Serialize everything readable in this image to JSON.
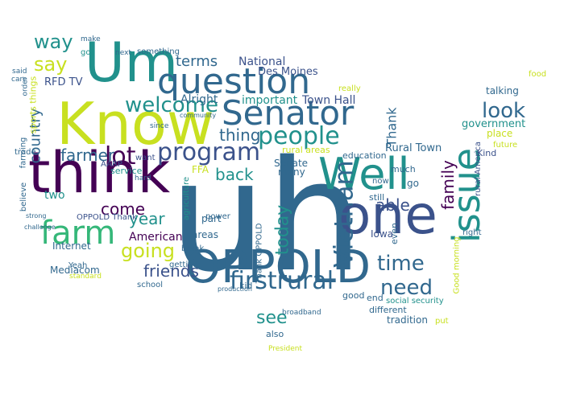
{
  "palette": {
    "dark_purple": "#440154",
    "indigo": "#3b528b",
    "blue": "#31688e",
    "teal": "#21918c",
    "green": "#35b779",
    "lime": "#addc30",
    "yellow": "#c8e020"
  },
  "words": [
    {
      "text": "uh",
      "color": "#31688e"
    },
    {
      "text": "Know",
      "color": "#c8e020"
    },
    {
      "text": "Um",
      "color": "#21918c"
    },
    {
      "text": "think",
      "color": "#440154"
    },
    {
      "text": "Well",
      "color": "#21918c"
    },
    {
      "text": "one",
      "color": "#3b528b"
    },
    {
      "text": "OPPOLD",
      "color": "#31688e"
    },
    {
      "text": "question",
      "color": "#31688e"
    },
    {
      "text": "Senator",
      "color": "#31688e"
    },
    {
      "text": "farm",
      "color": "#35b779"
    },
    {
      "text": "issue",
      "color": "#21918c"
    },
    {
      "text": "people",
      "color": "#21918c"
    },
    {
      "text": "program",
      "color": "#3b528b"
    },
    {
      "text": "firstrural",
      "color": "#31688e"
    },
    {
      "text": "Vietnam",
      "color": "#31688e"
    },
    {
      "text": "welcome",
      "color": "#21918c"
    },
    {
      "text": "going",
      "color": "#c8e020"
    },
    {
      "text": "look",
      "color": "#31688e"
    },
    {
      "text": "time",
      "color": "#31688e"
    },
    {
      "text": "need",
      "color": "#31688e"
    },
    {
      "text": "way",
      "color": "#21918c"
    },
    {
      "text": "say",
      "color": "#c8e020"
    },
    {
      "text": "farmer",
      "color": "#31688e"
    },
    {
      "text": "lot",
      "color": "#440154"
    },
    {
      "text": "come",
      "color": "#440154"
    },
    {
      "text": "year",
      "color": "#21918c"
    },
    {
      "text": "see",
      "color": "#21918c"
    },
    {
      "text": "thing",
      "color": "#31688e"
    },
    {
      "text": "back",
      "color": "#21918c"
    },
    {
      "text": "friends",
      "color": "#3b528b"
    },
    {
      "text": "today",
      "color": "#21918c"
    },
    {
      "text": "able",
      "color": "#3b528b"
    },
    {
      "text": "family",
      "color": "#440154"
    },
    {
      "text": "terms",
      "color": "#31688e"
    },
    {
      "text": "country",
      "color": "#31688e"
    },
    {
      "text": "Thank",
      "color": "#31688e"
    },
    {
      "text": "government",
      "color": "#21918c"
    },
    {
      "text": "American",
      "color": "#440154"
    },
    {
      "text": "National",
      "color": "#3b528b"
    },
    {
      "text": "Town Hall",
      "color": "#3b528b"
    },
    {
      "text": "important",
      "color": "#21918c"
    },
    {
      "text": "Alright",
      "color": "#31688e"
    },
    {
      "text": "Des Moines",
      "color": "#3b528b"
    },
    {
      "text": "RFD TV",
      "color": "#3b528b"
    },
    {
      "text": "sports things",
      "color": "#c8e020"
    },
    {
      "text": "Senate",
      "color": "#31688e"
    },
    {
      "text": "many",
      "color": "#31688e"
    },
    {
      "text": "part",
      "color": "#31688e"
    },
    {
      "text": "areas",
      "color": "#31688e"
    },
    {
      "text": "Internet",
      "color": "#31688e"
    },
    {
      "text": "Mediacom",
      "color": "#31688e"
    },
    {
      "text": "Rural Town",
      "color": "#31688e"
    },
    {
      "text": "education",
      "color": "#31688e"
    },
    {
      "text": "Iowa",
      "color": "#3b528b"
    },
    {
      "text": "tradition",
      "color": "#31688e"
    },
    {
      "text": "talking",
      "color": "#31688e"
    },
    {
      "text": "place",
      "color": "#c8e020"
    },
    {
      "text": "future",
      "color": "#c8e020"
    },
    {
      "text": "rural America",
      "color": "#3b528b"
    },
    {
      "text": "Kind",
      "color": "#3b528b"
    },
    {
      "text": "right",
      "color": "#31688e"
    },
    {
      "text": "put",
      "color": "#c8e020"
    },
    {
      "text": "Good morning",
      "color": "#c8e020"
    },
    {
      "text": "kid",
      "color": "#31688e"
    },
    {
      "text": "also",
      "color": "#31688e"
    },
    {
      "text": "good",
      "color": "#31688e"
    },
    {
      "text": "still",
      "color": "#31688e"
    },
    {
      "text": "even",
      "color": "#31688e"
    },
    {
      "text": "different",
      "color": "#31688e"
    },
    {
      "text": "end",
      "color": "#31688e"
    },
    {
      "text": "much",
      "color": "#31688e"
    },
    {
      "text": "go",
      "color": "#31688e"
    },
    {
      "text": "now",
      "color": "#31688e"
    },
    {
      "text": "school",
      "color": "#31688e"
    },
    {
      "text": "break",
      "color": "#31688e"
    },
    {
      "text": "getting",
      "color": "#31688e"
    },
    {
      "text": "power",
      "color": "#31688e"
    },
    {
      "text": "service",
      "color": "#21918c"
    },
    {
      "text": "AARP",
      "color": "#3b528b"
    },
    {
      "text": "want",
      "color": "#3b528b"
    },
    {
      "text": "farming",
      "color": "#31688e"
    },
    {
      "text": "trade",
      "color": "#31688e"
    },
    {
      "text": "believe",
      "color": "#31688e"
    },
    {
      "text": "two",
      "color": "#21918c"
    },
    {
      "text": "Yeah",
      "color": "#31688e"
    },
    {
      "text": "OPPOLD Thank",
      "color": "#3b528b"
    },
    {
      "text": "Thank OPPOLD",
      "color": "#31688e"
    },
    {
      "text": "FFA",
      "color": "#c8e020"
    },
    {
      "text": "agriculture",
      "color": "#21918c"
    },
    {
      "text": "rural areas",
      "color": "#c8e020"
    },
    {
      "text": "social security",
      "color": "#21918c"
    },
    {
      "text": "broadband",
      "color": "#31688e"
    },
    {
      "text": "production",
      "color": "#31688e"
    },
    {
      "text": "something",
      "color": "#31688e"
    },
    {
      "text": "got",
      "color": "#21918c"
    },
    {
      "text": "next",
      "color": "#31688e"
    },
    {
      "text": "make",
      "color": "#31688e"
    },
    {
      "text": "care",
      "color": "#31688e"
    },
    {
      "text": "said",
      "color": "#31688e"
    },
    {
      "text": "order",
      "color": "#31688e"
    },
    {
      "text": "really",
      "color": "#c8e020"
    },
    {
      "text": "food",
      "color": "#c8e020"
    },
    {
      "text": "President",
      "color": "#c8e020"
    },
    {
      "text": "challenge",
      "color": "#31688e"
    },
    {
      "text": "strong",
      "color": "#31688e"
    },
    {
      "text": "standard",
      "color": "#c8e020"
    },
    {
      "text": "since",
      "color": "#31688e"
    },
    {
      "text": "community",
      "color": "#31688e"
    },
    {
      "text": "hard",
      "color": "#31688e"
    }
  ]
}
